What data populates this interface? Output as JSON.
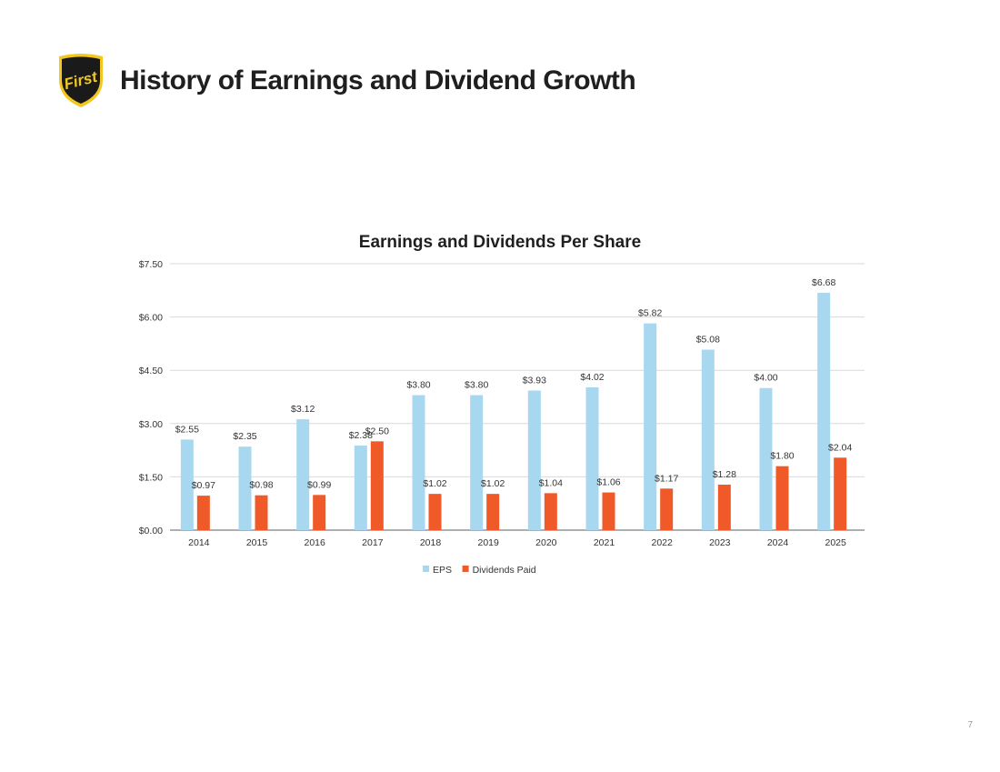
{
  "slide": {
    "title": "History of Earnings and Dividend Growth",
    "page_number": "7",
    "logo_text": "First"
  },
  "colors": {
    "eps": "#a8d8ef",
    "dividends": "#f05a28",
    "grid": "#d9d9d9",
    "axis_text": "#333333",
    "title_text": "#1f1f1f",
    "logo_bg": "#1a1a1a",
    "logo_gold": "#f2c81e"
  },
  "chart_data": {
    "type": "bar",
    "title": "Earnings and Dividends Per Share",
    "xlabel": "",
    "ylabel": "",
    "categories": [
      "2014",
      "2015",
      "2016",
      "2017",
      "2018",
      "2019",
      "2020",
      "2021",
      "2022",
      "2023",
      "2024",
      "2025"
    ],
    "series": [
      {
        "name": "EPS",
        "values": [
          2.55,
          2.35,
          3.12,
          2.38,
          3.8,
          3.8,
          3.93,
          4.02,
          5.82,
          5.08,
          4.0,
          6.68
        ],
        "labels": [
          "$2.55",
          "$2.35",
          "$3.12",
          "$2.38",
          "$3.80",
          "$3.80",
          "$3.93",
          "$4.02",
          "$5.82",
          "$5.08",
          "$4.00",
          "$6.68"
        ]
      },
      {
        "name": "Dividends Paid",
        "values": [
          0.97,
          0.98,
          0.99,
          2.5,
          1.02,
          1.02,
          1.04,
          1.06,
          1.17,
          1.28,
          1.8,
          2.04
        ],
        "labels": [
          "$0.97",
          "$0.98",
          "$0.99",
          "$2.50",
          "$1.02",
          "$1.02",
          "$1.04",
          "$1.06",
          "$1.17",
          "$1.28",
          "$1.80",
          "$2.04"
        ]
      }
    ],
    "ylim": [
      0,
      7.5
    ],
    "yticks": [
      0,
      1.5,
      3.0,
      4.5,
      6.0,
      7.5
    ],
    "ytick_labels": [
      "$0.00",
      "$1.50",
      "$3.00",
      "$4.50",
      "$6.00",
      "$7.50"
    ],
    "grid": true,
    "legend": "bottom"
  }
}
